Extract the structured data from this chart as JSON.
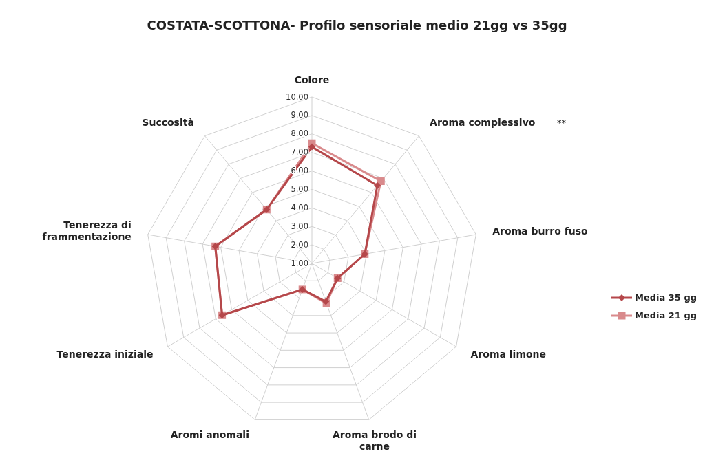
{
  "chart_data": {
    "type": "radar",
    "title": "COSTATA-SCOTTONA- Profilo sensoriale medio 21gg vs 35gg",
    "categories": [
      "Colore",
      "Aroma complessivo",
      "Aroma burro fuso",
      "Aroma limone",
      "Aroma brodo di carne",
      "Aromi anomali",
      "Tenerezza iniziale",
      "Tenerezza di frammentazione",
      "Succosità"
    ],
    "series": [
      {
        "name": "Media 35 gg",
        "color": "#b5474a",
        "marker": "diamond",
        "values": [
          7.3,
          6.5,
          3.9,
          2.6,
          3.2,
          2.5,
          6.6,
          6.3,
          4.8
        ]
      },
      {
        "name": "Media 21 gg",
        "color": "#d98a8c",
        "marker": "square",
        "values": [
          7.5,
          6.8,
          3.9,
          2.6,
          3.3,
          2.5,
          6.6,
          6.3,
          4.8
        ]
      }
    ],
    "ylim": [
      1,
      10
    ],
    "yticks": [
      {
        "value": 1,
        "label": "1.00"
      },
      {
        "value": 2,
        "label": "2.00"
      },
      {
        "value": 3,
        "label": "3.00"
      },
      {
        "value": 4,
        "label": "4.00"
      },
      {
        "value": 5,
        "label": "5.00"
      },
      {
        "value": 6,
        "label": "6.00"
      },
      {
        "value": 7,
        "label": "7.00"
      },
      {
        "value": 8,
        "label": "8.00"
      },
      {
        "value": 9,
        "label": "9.00"
      },
      {
        "value": 10,
        "label": "10.00"
      }
    ],
    "grid": true,
    "legend": "right",
    "annotations": [
      {
        "text": "**",
        "x": "Aroma complessivo"
      }
    ]
  }
}
